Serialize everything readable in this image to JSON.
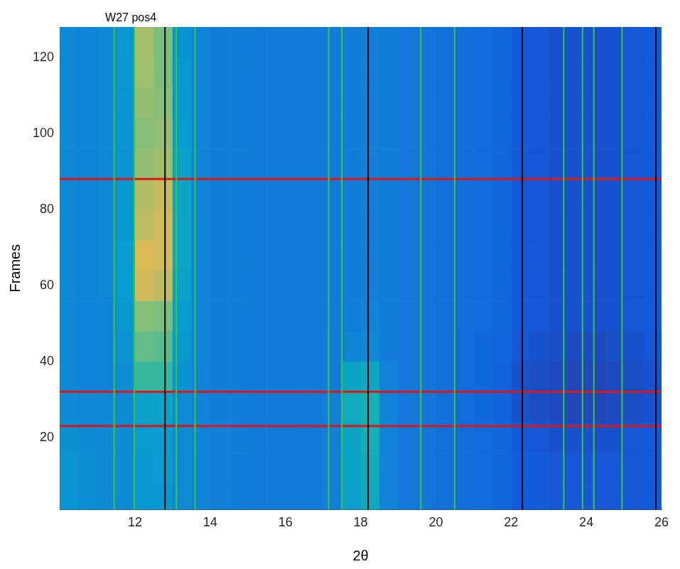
{
  "chart_data": {
    "type": "heatmap",
    "title": "W27 pos4",
    "x_label": "2θ",
    "y_label": "Frames",
    "xlim": [
      10,
      26
    ],
    "xticks": [
      12,
      14,
      16,
      18,
      20,
      22,
      24,
      26
    ],
    "ylim": [
      1,
      128
    ],
    "yticks": [
      20,
      40,
      60,
      80,
      100,
      120
    ],
    "grid": false,
    "x_bins": [
      10,
      10.5,
      11,
      11.5,
      12,
      12.5,
      13,
      13.5,
      14,
      14.5,
      15,
      15.5,
      16,
      16.5,
      17,
      17.5,
      18,
      18.5,
      19,
      19.5,
      20,
      20.5,
      21,
      21.5,
      22,
      22.5,
      23,
      23.5,
      24,
      24.5,
      25,
      25.5,
      26
    ],
    "y_bins": [
      0,
      8,
      16,
      24,
      32,
      40,
      48,
      56,
      64,
      72,
      80,
      88,
      96,
      104,
      112,
      120,
      128
    ],
    "cells": [
      [
        0.34,
        0.32,
        0.3,
        0.3,
        0.36,
        0.36,
        0.3,
        0.28,
        0.26,
        0.25,
        0.24,
        0.24,
        0.24,
        0.24,
        0.26,
        0.4,
        0.45,
        0.27,
        0.23,
        0.22,
        0.2,
        0.19,
        0.18,
        0.17,
        0.13,
        0.12,
        0.11,
        0.11,
        0.11,
        0.11,
        0.11,
        0.12
      ],
      [
        0.34,
        0.32,
        0.3,
        0.3,
        0.36,
        0.37,
        0.3,
        0.28,
        0.26,
        0.25,
        0.24,
        0.24,
        0.24,
        0.24,
        0.26,
        0.41,
        0.46,
        0.27,
        0.23,
        0.22,
        0.2,
        0.19,
        0.18,
        0.17,
        0.13,
        0.12,
        0.11,
        0.11,
        0.11,
        0.11,
        0.11,
        0.12
      ],
      [
        0.33,
        0.31,
        0.3,
        0.3,
        0.37,
        0.38,
        0.3,
        0.28,
        0.26,
        0.25,
        0.24,
        0.24,
        0.24,
        0.24,
        0.26,
        0.42,
        0.48,
        0.28,
        0.23,
        0.22,
        0.2,
        0.19,
        0.18,
        0.17,
        0.12,
        0.11,
        0.1,
        0.1,
        0.1,
        0.1,
        0.11,
        0.12
      ],
      [
        0.3,
        0.29,
        0.29,
        0.3,
        0.4,
        0.41,
        0.3,
        0.27,
        0.25,
        0.25,
        0.24,
        0.24,
        0.24,
        0.24,
        0.26,
        0.46,
        0.5,
        0.28,
        0.23,
        0.22,
        0.2,
        0.18,
        0.17,
        0.15,
        0.1,
        0.09,
        0.08,
        0.07,
        0.07,
        0.08,
        0.09,
        0.1
      ],
      [
        0.29,
        0.28,
        0.28,
        0.32,
        0.56,
        0.56,
        0.34,
        0.27,
        0.25,
        0.25,
        0.24,
        0.24,
        0.24,
        0.24,
        0.25,
        0.42,
        0.44,
        0.27,
        0.23,
        0.22,
        0.2,
        0.18,
        0.17,
        0.15,
        0.1,
        0.09,
        0.08,
        0.07,
        0.07,
        0.08,
        0.09,
        0.1
      ],
      [
        0.29,
        0.28,
        0.28,
        0.34,
        0.64,
        0.62,
        0.36,
        0.28,
        0.25,
        0.25,
        0.24,
        0.24,
        0.24,
        0.24,
        0.25,
        0.28,
        0.3,
        0.25,
        0.23,
        0.22,
        0.2,
        0.18,
        0.17,
        0.16,
        0.11,
        0.1,
        0.09,
        0.08,
        0.08,
        0.09,
        0.1,
        0.11
      ],
      [
        0.29,
        0.28,
        0.28,
        0.36,
        0.7,
        0.68,
        0.38,
        0.28,
        0.25,
        0.25,
        0.24,
        0.24,
        0.24,
        0.24,
        0.24,
        0.26,
        0.27,
        0.25,
        0.23,
        0.22,
        0.2,
        0.19,
        0.18,
        0.17,
        0.12,
        0.11,
        0.1,
        0.1,
        0.1,
        0.1,
        0.11,
        0.12
      ],
      [
        0.29,
        0.28,
        0.29,
        0.38,
        0.84,
        0.8,
        0.4,
        0.28,
        0.25,
        0.25,
        0.24,
        0.24,
        0.24,
        0.24,
        0.24,
        0.25,
        0.26,
        0.25,
        0.23,
        0.22,
        0.2,
        0.19,
        0.18,
        0.17,
        0.12,
        0.11,
        0.1,
        0.1,
        0.1,
        0.1,
        0.11,
        0.12
      ],
      [
        0.29,
        0.28,
        0.29,
        0.38,
        0.86,
        0.84,
        0.42,
        0.28,
        0.25,
        0.25,
        0.24,
        0.24,
        0.24,
        0.24,
        0.24,
        0.25,
        0.26,
        0.25,
        0.23,
        0.22,
        0.2,
        0.19,
        0.18,
        0.17,
        0.12,
        0.11,
        0.1,
        0.1,
        0.1,
        0.1,
        0.11,
        0.12
      ],
      [
        0.29,
        0.28,
        0.29,
        0.36,
        0.8,
        0.84,
        0.42,
        0.28,
        0.25,
        0.25,
        0.24,
        0.24,
        0.24,
        0.24,
        0.24,
        0.25,
        0.26,
        0.25,
        0.23,
        0.22,
        0.2,
        0.19,
        0.18,
        0.17,
        0.12,
        0.11,
        0.1,
        0.1,
        0.1,
        0.1,
        0.11,
        0.12
      ],
      [
        0.29,
        0.28,
        0.29,
        0.36,
        0.78,
        0.82,
        0.42,
        0.28,
        0.25,
        0.25,
        0.24,
        0.24,
        0.24,
        0.24,
        0.24,
        0.25,
        0.26,
        0.25,
        0.23,
        0.22,
        0.2,
        0.19,
        0.18,
        0.17,
        0.12,
        0.11,
        0.1,
        0.1,
        0.1,
        0.1,
        0.11,
        0.12
      ],
      [
        0.29,
        0.28,
        0.29,
        0.34,
        0.72,
        0.74,
        0.4,
        0.28,
        0.25,
        0.25,
        0.24,
        0.24,
        0.24,
        0.24,
        0.24,
        0.25,
        0.26,
        0.25,
        0.23,
        0.22,
        0.2,
        0.19,
        0.18,
        0.17,
        0.12,
        0.11,
        0.1,
        0.1,
        0.1,
        0.1,
        0.11,
        0.12
      ],
      [
        0.29,
        0.28,
        0.29,
        0.34,
        0.7,
        0.72,
        0.38,
        0.28,
        0.25,
        0.25,
        0.24,
        0.24,
        0.24,
        0.24,
        0.24,
        0.25,
        0.26,
        0.25,
        0.23,
        0.22,
        0.2,
        0.19,
        0.18,
        0.17,
        0.12,
        0.11,
        0.1,
        0.1,
        0.1,
        0.1,
        0.11,
        0.12
      ],
      [
        0.29,
        0.28,
        0.29,
        0.34,
        0.72,
        0.7,
        0.36,
        0.28,
        0.25,
        0.25,
        0.24,
        0.24,
        0.24,
        0.24,
        0.24,
        0.25,
        0.26,
        0.25,
        0.23,
        0.22,
        0.2,
        0.19,
        0.18,
        0.17,
        0.12,
        0.11,
        0.1,
        0.1,
        0.1,
        0.1,
        0.11,
        0.12
      ],
      [
        0.29,
        0.28,
        0.29,
        0.35,
        0.74,
        0.68,
        0.36,
        0.28,
        0.25,
        0.25,
        0.24,
        0.24,
        0.24,
        0.24,
        0.24,
        0.25,
        0.26,
        0.25,
        0.23,
        0.22,
        0.2,
        0.19,
        0.18,
        0.17,
        0.12,
        0.11,
        0.1,
        0.1,
        0.1,
        0.1,
        0.11,
        0.12
      ],
      [
        0.29,
        0.28,
        0.29,
        0.35,
        0.75,
        0.68,
        0.34,
        0.28,
        0.25,
        0.25,
        0.24,
        0.24,
        0.24,
        0.24,
        0.24,
        0.25,
        0.26,
        0.25,
        0.23,
        0.22,
        0.2,
        0.19,
        0.18,
        0.17,
        0.12,
        0.11,
        0.1,
        0.1,
        0.1,
        0.1,
        0.11,
        0.12
      ]
    ],
    "vertical_lines": [
      {
        "color": "#3cc83c",
        "x": [
          11.45,
          11.98,
          13.1,
          13.6,
          17.15,
          17.5,
          19.6,
          20.5,
          23.4,
          23.9,
          24.2,
          24.95
        ]
      },
      {
        "color": "#000000",
        "x": [
          12.8,
          18.2,
          22.3,
          25.85
        ]
      }
    ],
    "horizontal_lines": [
      {
        "color": "#e01515",
        "y": [
          23,
          32,
          88
        ]
      }
    ]
  }
}
